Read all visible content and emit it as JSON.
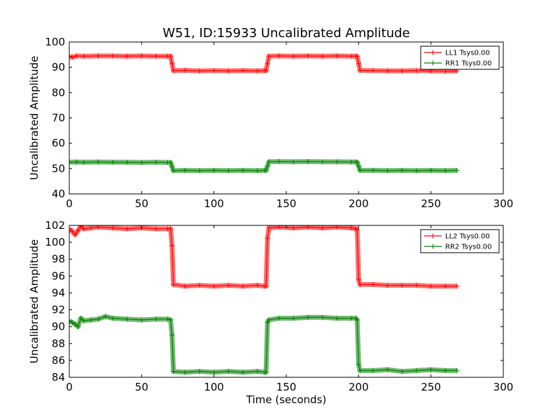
{
  "chart_data": [
    {
      "type": "line",
      "title": "W51, ID:15933 Uncalibrated Amplitude",
      "xlabel": "",
      "ylabel": "Uncalibrated Amplitude",
      "xlim": [
        0,
        300
      ],
      "ylim": [
        40,
        100
      ],
      "xticks": [
        "0",
        "50",
        "100",
        "150",
        "200",
        "250",
        "300"
      ],
      "yticks": [
        "40",
        "50",
        "60",
        "70",
        "80",
        "90",
        "100"
      ],
      "legend_position": "top-right",
      "series": [
        {
          "name": "LL1 Tsys0.00",
          "color": "#ff0000",
          "x": [
            0,
            2,
            5,
            10,
            20,
            30,
            40,
            50,
            60,
            68,
            70,
            71,
            72,
            80,
            90,
            100,
            110,
            120,
            130,
            135,
            136,
            137,
            138,
            145,
            155,
            165,
            175,
            185,
            195,
            198,
            199,
            200,
            201,
            210,
            220,
            230,
            240,
            250,
            260,
            268
          ],
          "y": [
            94.3,
            94.0,
            94.5,
            94.4,
            94.5,
            94.5,
            94.4,
            94.5,
            94.4,
            94.4,
            94.4,
            91.5,
            88.7,
            88.8,
            88.6,
            88.7,
            88.6,
            88.7,
            88.6,
            88.7,
            88.7,
            91.5,
            94.4,
            94.5,
            94.4,
            94.5,
            94.4,
            94.5,
            94.4,
            94.4,
            94.3,
            91.5,
            88.8,
            88.7,
            88.6,
            88.6,
            88.7,
            88.6,
            88.5,
            88.6
          ]
        },
        {
          "name": "RR1 Tsys0.00",
          "color": "#008000",
          "x": [
            0,
            5,
            10,
            20,
            30,
            40,
            50,
            60,
            68,
            70,
            71,
            72,
            80,
            90,
            100,
            110,
            120,
            130,
            135,
            136,
            137,
            138,
            145,
            155,
            165,
            175,
            185,
            195,
            198,
            199,
            200,
            201,
            210,
            220,
            230,
            240,
            250,
            260,
            268
          ],
          "y": [
            52.5,
            52.6,
            52.5,
            52.6,
            52.5,
            52.5,
            52.4,
            52.5,
            52.4,
            52.4,
            50.8,
            49.2,
            49.3,
            49.2,
            49.3,
            49.2,
            49.3,
            49.2,
            49.3,
            49.3,
            51.0,
            52.7,
            52.8,
            52.7,
            52.8,
            52.7,
            52.7,
            52.6,
            52.6,
            52.5,
            50.9,
            49.3,
            49.3,
            49.2,
            49.3,
            49.2,
            49.3,
            49.2,
            49.3
          ]
        }
      ]
    },
    {
      "type": "line",
      "title": "",
      "xlabel": "Time (seconds)",
      "ylabel": "Uncalibrated Amplitude",
      "xlim": [
        0,
        300
      ],
      "ylim": [
        84,
        102
      ],
      "xticks": [
        "0",
        "50",
        "100",
        "150",
        "200",
        "250",
        "300"
      ],
      "yticks": [
        "84",
        "86",
        "88",
        "90",
        "92",
        "94",
        "96",
        "98",
        "100",
        "102"
      ],
      "legend_position": "top-right",
      "series": [
        {
          "name": "LL2 Tsys0.00",
          "color": "#ff0000",
          "x": [
            0,
            2,
            4,
            6,
            8,
            10,
            15,
            20,
            30,
            40,
            50,
            60,
            68,
            70,
            71,
            72,
            80,
            90,
            100,
            110,
            120,
            130,
            135,
            136,
            137,
            138,
            145,
            155,
            165,
            175,
            185,
            195,
            198,
            199,
            200,
            201,
            210,
            220,
            230,
            240,
            250,
            260,
            268
          ],
          "y": [
            101.6,
            101.3,
            100.9,
            101.4,
            101.9,
            101.6,
            101.7,
            101.8,
            101.7,
            101.6,
            101.7,
            101.6,
            101.6,
            101.6,
            99.6,
            95.0,
            94.8,
            94.9,
            94.8,
            94.9,
            94.8,
            94.9,
            94.8,
            94.8,
            100.5,
            101.7,
            101.8,
            101.7,
            101.8,
            101.7,
            101.8,
            101.7,
            101.6,
            101.5,
            95.6,
            95.0,
            95.0,
            94.9,
            94.9,
            94.9,
            94.8,
            94.8,
            94.8
          ]
        },
        {
          "name": "RR2 Tsys0.00",
          "color": "#008000",
          "x": [
            0,
            2,
            4,
            6,
            8,
            10,
            15,
            20,
            25,
            30,
            40,
            50,
            60,
            68,
            70,
            71,
            72,
            80,
            90,
            100,
            110,
            120,
            130,
            135,
            136,
            137,
            138,
            145,
            155,
            165,
            175,
            185,
            195,
            198,
            199,
            200,
            201,
            210,
            220,
            230,
            240,
            250,
            260,
            268
          ],
          "y": [
            90.7,
            90.5,
            90.3,
            90.0,
            91.0,
            90.7,
            90.8,
            90.9,
            91.2,
            91.0,
            90.9,
            90.8,
            90.9,
            90.9,
            90.8,
            89.0,
            84.7,
            84.6,
            84.7,
            84.6,
            84.7,
            84.6,
            84.7,
            84.6,
            84.6,
            90.5,
            90.8,
            91.0,
            91.0,
            91.1,
            91.1,
            91.0,
            91.0,
            91.0,
            90.8,
            85.5,
            84.8,
            84.8,
            84.9,
            84.7,
            84.8,
            84.9,
            84.8,
            84.8
          ]
        }
      ]
    }
  ]
}
